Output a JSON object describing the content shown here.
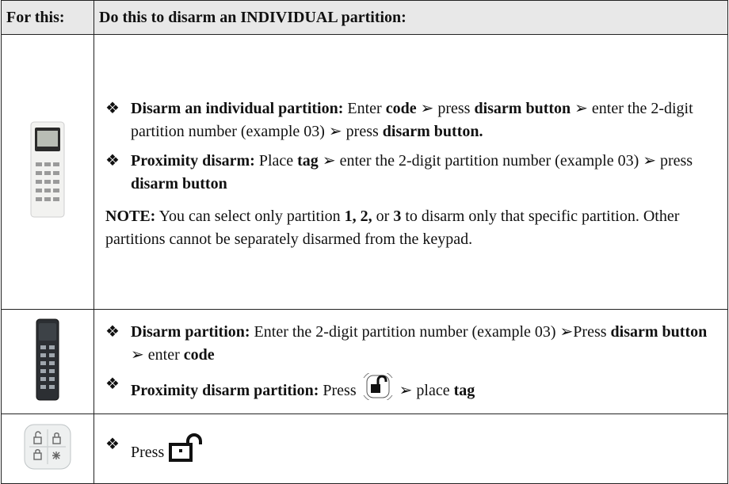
{
  "table": {
    "header": [
      "For this:",
      "Do this to disarm an INDIVIDUAL partition:"
    ],
    "rows": [
      {
        "items": [
          {
            "bullet": "❖",
            "runs": [
              {
                "t": "Disarm an individual partition:",
                "b": true
              },
              {
                "t": " Enter "
              },
              {
                "t": "code",
                "b": true
              },
              {
                "t": " ➢ press "
              },
              {
                "t": "disarm button",
                "b": true
              },
              {
                "t": " ➢ enter the 2-digit partition number (example 03) ➢ press "
              },
              {
                "t": "disarm button.",
                "b": true
              }
            ]
          },
          {
            "bullet": "❖",
            "runs": [
              {
                "t": "Proximity disarm:",
                "b": true
              },
              {
                "t": " Place "
              },
              {
                "t": "tag",
                "b": true
              },
              {
                "t": " ➢ enter the 2-digit partition number (example 03) ➢ press "
              },
              {
                "t": "disarm button",
                "b": true
              }
            ]
          }
        ],
        "note": [
          {
            "t": "NOTE:",
            "b": true
          },
          {
            "t": " You can select only partition "
          },
          {
            "t": "1, 2,",
            "b": true
          },
          {
            "t": " or "
          },
          {
            "t": "3",
            "b": true
          },
          {
            "t": " to disarm only that specific partition. Other partitions cannot be separately disarmed from the keypad."
          }
        ]
      },
      {
        "items": [
          {
            "bullet": "❖",
            "runs": [
              {
                "t": "Disarm partition:",
                "b": true
              },
              {
                "t": " Enter the 2-digit partition number (example 03) ➢Press "
              },
              {
                "t": "disarm button",
                "b": true
              },
              {
                "t": " ➢ enter "
              },
              {
                "t": "code",
                "b": true
              }
            ]
          },
          {
            "bullet": "❖",
            "icon": "padlock-badge",
            "runs": [
              {
                "t": "Proximity disarm partition:",
                "b": true
              },
              {
                "t": " Press "
              }
            ],
            "after": [
              {
                "t": " ➢ place "
              },
              {
                "t": "tag",
                "b": true
              }
            ]
          }
        ]
      },
      {
        "items": [
          {
            "bullet": "❖",
            "icon": "padlock",
            "runs": [
              {
                "t": "Press "
              }
            ]
          }
        ]
      }
    ]
  }
}
